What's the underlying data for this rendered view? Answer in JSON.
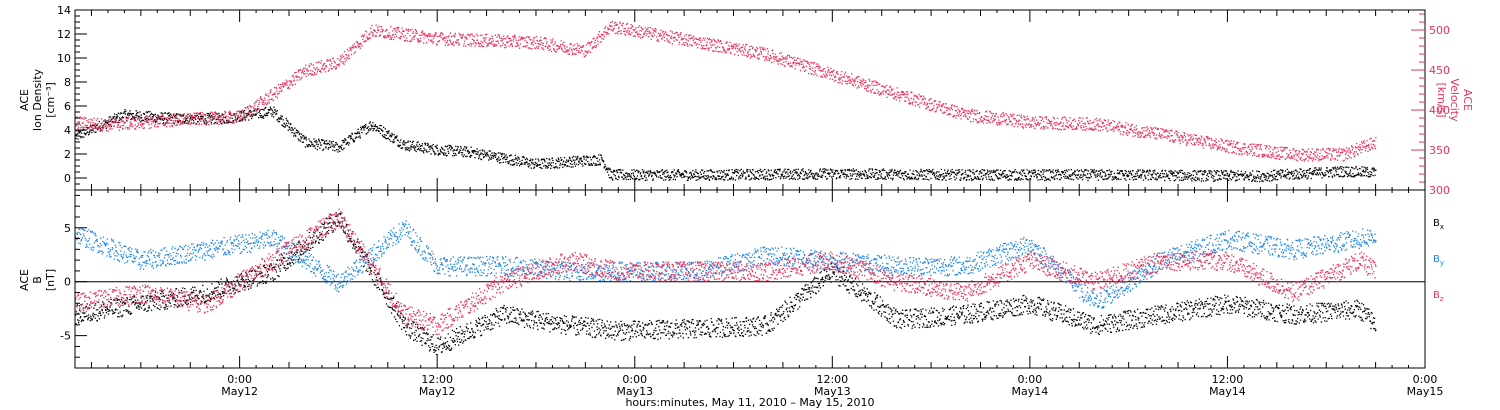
{
  "figure": {
    "xlabel": "hours:minutes, May 11, 2010 – May 15, 2010",
    "xlim": [
      "2010-05-11T14:00",
      "2010-05-15T00:00"
    ],
    "x_ticks": [
      {
        "t": "2010-05-12T00:00",
        "time": "0:00",
        "day": "May12"
      },
      {
        "t": "2010-05-12T12:00",
        "time": "12:00",
        "day": "May12"
      },
      {
        "t": "2010-05-13T00:00",
        "time": "0:00",
        "day": "May13"
      },
      {
        "t": "2010-05-13T12:00",
        "time": "12:00",
        "day": "May13"
      },
      {
        "t": "2010-05-14T00:00",
        "time": "0:00",
        "day": "May14"
      },
      {
        "t": "2010-05-14T12:00",
        "time": "12:00",
        "day": "May14"
      },
      {
        "t": "2010-05-15T00:00",
        "time": "0:00",
        "day": "May15"
      }
    ],
    "colors": {
      "black": "#000000",
      "red": "#e8325a",
      "blue": "#1e87e6",
      "axis": "#000000"
    }
  },
  "chart_data": [
    {
      "type": "scatter",
      "panel": "top",
      "ylabel_left": [
        "ACE",
        "Ion Density",
        "[cm⁻³]"
      ],
      "ylabel_right": [
        "ACE",
        "Velocity",
        "[km/s]"
      ],
      "ylim_left": [
        -1,
        14
      ],
      "ylim_right": [
        300,
        525
      ],
      "yticks_left": [
        0,
        2,
        4,
        6,
        8,
        10,
        12,
        14
      ],
      "yticks_right": [
        300,
        350,
        400,
        450,
        500
      ],
      "series": [
        {
          "axis": "left",
          "color": "black",
          "x": [
            "2010-05-11T14:00",
            "2010-05-11T17:00",
            "2010-05-11T20:00",
            "2010-05-11T23:00",
            "2010-05-12T02:00",
            "2010-05-12T04:00",
            "2010-05-12T06:00",
            "2010-05-12T08:00",
            "2010-05-12T10:00",
            "2010-05-12T12:00",
            "2010-05-12T14:00",
            "2010-05-12T18:00",
            "2010-05-12T22:00",
            "2010-05-12T22:30",
            "2010-05-13T04:00",
            "2010-05-13T12:00",
            "2010-05-13T20:00",
            "2010-05-14T06:00",
            "2010-05-14T14:00",
            "2010-05-14T19:00",
            "2010-05-14T21:00"
          ],
          "values": [
            3.5,
            5.3,
            5.0,
            5.0,
            5.6,
            3.0,
            2.6,
            4.5,
            2.8,
            2.4,
            2.2,
            1.2,
            1.6,
            0.3,
            0.3,
            0.4,
            0.3,
            0.3,
            0.2,
            0.6,
            0.5
          ]
        },
        {
          "axis": "right",
          "color": "red",
          "x": [
            "2010-05-11T14:00",
            "2010-05-11T16:00",
            "2010-05-11T20:00",
            "2010-05-12T00:00",
            "2010-05-12T02:00",
            "2010-05-12T04:00",
            "2010-05-12T06:00",
            "2010-05-12T08:00",
            "2010-05-12T12:00",
            "2010-05-12T18:00",
            "2010-05-12T21:00",
            "2010-05-12T22:30",
            "2010-05-13T04:00",
            "2010-05-13T08:00",
            "2010-05-13T12:00",
            "2010-05-13T16:00",
            "2010-05-13T20:00",
            "2010-05-14T00:00",
            "2010-05-14T04:00",
            "2010-05-14T08:00",
            "2010-05-14T12:00",
            "2010-05-14T16:00",
            "2010-05-14T19:00",
            "2010-05-14T21:00"
          ],
          "values": [
            385,
            382,
            388,
            392,
            420,
            450,
            460,
            500,
            490,
            485,
            475,
            505,
            485,
            470,
            445,
            420,
            395,
            385,
            383,
            370,
            355,
            345,
            345,
            360
          ]
        }
      ]
    },
    {
      "type": "scatter",
      "panel": "bottom",
      "ylabel_left": [
        "ACE",
        "B",
        "[nT]"
      ],
      "ylim": [
        -8,
        8.5
      ],
      "yticks": [
        -5,
        0,
        5
      ],
      "zero_line": true,
      "legend": [
        {
          "label": "B",
          "sub": "x",
          "color": "black"
        },
        {
          "label": "B",
          "sub": "y",
          "color": "blue"
        },
        {
          "label": "B",
          "sub": "z",
          "color": "red"
        }
      ],
      "series": [
        {
          "name": "Bx",
          "color": "black",
          "x": [
            "2010-05-11T14:00",
            "2010-05-11T18:00",
            "2010-05-11T22:00",
            "2010-05-12T02:00",
            "2010-05-12T06:00",
            "2010-05-12T10:00",
            "2010-05-12T12:00",
            "2010-05-12T16:00",
            "2010-05-12T20:00",
            "2010-05-12T23:00",
            "2010-05-13T04:00",
            "2010-05-13T08:00",
            "2010-05-13T12:00",
            "2010-05-13T16:00",
            "2010-05-13T20:00",
            "2010-05-14T00:00",
            "2010-05-14T04:00",
            "2010-05-14T08:00",
            "2010-05-14T12:00",
            "2010-05-14T16:00",
            "2010-05-14T20:00",
            "2010-05-14T21:00"
          ],
          "values": [
            -3,
            -2,
            -1,
            1,
            6,
            -4,
            -6,
            -3,
            -4,
            -4.5,
            -4.3,
            -4,
            1,
            -3.5,
            -3,
            -2,
            -4,
            -3,
            -2,
            -3,
            -2.5,
            -4
          ]
        },
        {
          "name": "By",
          "color": "blue",
          "x": [
            "2010-05-11T14:00",
            "2010-05-11T18:00",
            "2010-05-11T22:00",
            "2010-05-12T02:00",
            "2010-05-12T06:00",
            "2010-05-12T10:00",
            "2010-05-12T12:00",
            "2010-05-12T16:00",
            "2010-05-12T20:00",
            "2010-05-12T23:00",
            "2010-05-13T04:00",
            "2010-05-13T08:00",
            "2010-05-13T12:00",
            "2010-05-13T16:00",
            "2010-05-13T20:00",
            "2010-05-14T00:00",
            "2010-05-14T04:00",
            "2010-05-14T08:00",
            "2010-05-14T12:00",
            "2010-05-14T16:00",
            "2010-05-14T20:00",
            "2010-05-14T21:00"
          ],
          "values": [
            4.5,
            2,
            3,
            4,
            0,
            5,
            1.5,
            1.5,
            1,
            1,
            1,
            2.5,
            2,
            1.5,
            1.5,
            3.5,
            -2,
            2,
            4,
            3,
            4,
            4.3
          ]
        },
        {
          "name": "Bz",
          "color": "red",
          "x": [
            "2010-05-11T14:00",
            "2010-05-11T18:00",
            "2010-05-11T22:00",
            "2010-05-12T02:00",
            "2010-05-12T06:00",
            "2010-05-12T10:00",
            "2010-05-12T12:00",
            "2010-05-12T16:00",
            "2010-05-12T20:00",
            "2010-05-12T23:00",
            "2010-05-13T04:00",
            "2010-05-13T08:00",
            "2010-05-13T12:00",
            "2010-05-13T16:00",
            "2010-05-13T20:00",
            "2010-05-14T00:00",
            "2010-05-14T04:00",
            "2010-05-14T08:00",
            "2010-05-14T12:00",
            "2010-05-14T16:00",
            "2010-05-14T20:00",
            "2010-05-14T21:00"
          ],
          "values": [
            -2,
            -1,
            -2,
            2,
            6,
            -3,
            -4,
            0,
            2,
            1,
            1,
            1,
            2,
            0,
            -1,
            2,
            0,
            2,
            2,
            -1,
            2,
            1
          ]
        }
      ]
    }
  ]
}
